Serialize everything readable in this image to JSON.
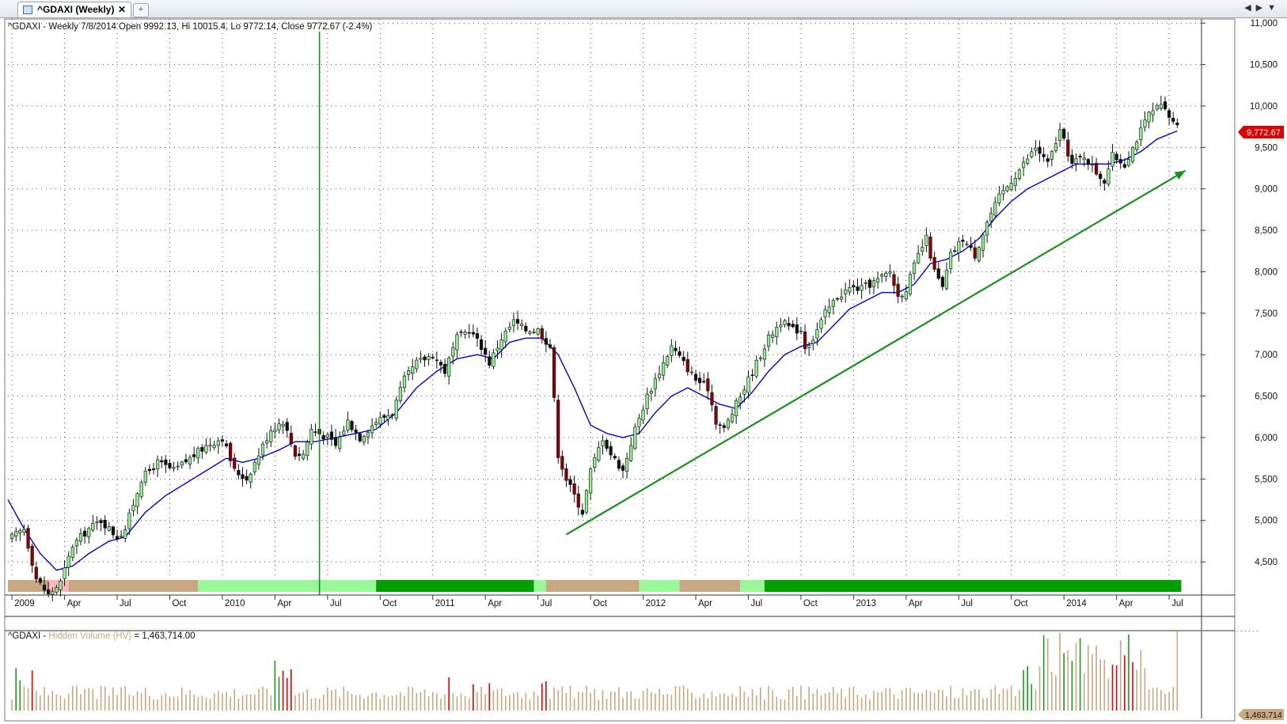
{
  "tab": {
    "title": "^GDAXI (Weekly)",
    "close": "✕",
    "new_tab": "+",
    "nav": "◀▶▼"
  },
  "price_header": "^GDAXI - Weekly 7/8/2014 Open 9992.13, Hi 10015.4, Lo 9772.14, Close 9772.67 (-2.4%)",
  "volume_header": {
    "symbol": "^GDAXI - ",
    "indicator": "Hidden Volume (HV)",
    "value": " = 1,463,714.00"
  },
  "last_price_label": "9,772.67",
  "last_volume_label": "1,463,714",
  "colors": {
    "up": "#90ee90",
    "up_dark": "#228b22",
    "down": "#8b0000",
    "ma": "#0000dd",
    "trendline": "#1a8f1a",
    "vline": "#1a8f1a",
    "vol_neutral": "#c8a882",
    "vol_red": "#dd0000",
    "vol_green": "#1a9a1a",
    "band_tan": "#c8a882",
    "band_light": "#98f898",
    "band_dark": "#00a000",
    "band_pink": "#ffb6c1"
  },
  "chart_data": {
    "type": "candlestick",
    "title": "",
    "x_axis": {
      "tick_labels": [
        {
          "label": "2009",
          "week": 0
        },
        {
          "label": "Apr",
          "week": 13
        },
        {
          "label": "Jul",
          "week": 26
        },
        {
          "label": "Oct",
          "week": 39
        },
        {
          "label": "2010",
          "week": 52
        },
        {
          "label": "Apr",
          "week": 65
        },
        {
          "label": "Jul",
          "week": 78
        },
        {
          "label": "Oct",
          "week": 91
        },
        {
          "label": "2011",
          "week": 104
        },
        {
          "label": "Apr",
          "week": 117
        },
        {
          "label": "Jul",
          "week": 130
        },
        {
          "label": "Oct",
          "week": 143
        },
        {
          "label": "2012",
          "week": 156
        },
        {
          "label": "Apr",
          "week": 169
        },
        {
          "label": "Jul",
          "week": 182
        },
        {
          "label": "Oct",
          "week": 195
        },
        {
          "label": "2013",
          "week": 208
        },
        {
          "label": "Apr",
          "week": 221
        },
        {
          "label": "Jul",
          "week": 234
        },
        {
          "label": "Oct",
          "week": 247
        },
        {
          "label": "2014",
          "week": 260
        },
        {
          "label": "Apr",
          "week": 273
        },
        {
          "label": "Jul",
          "week": 286
        }
      ],
      "week_range": [
        -1,
        294
      ]
    },
    "y_axis": {
      "ticks": [
        4500,
        5000,
        5500,
        6000,
        6500,
        7000,
        7500,
        8000,
        8500,
        9000,
        9500,
        10000,
        10500,
        11000
      ],
      "tick_labels": [
        "4,500",
        "5,000",
        "5,500",
        "6,000",
        "6,500",
        "7,000",
        "7,500",
        "8,000",
        "8,500",
        "9,000",
        "9,500",
        "10,000",
        "10,500",
        "11,000"
      ],
      "range": [
        4100,
        11050
      ]
    },
    "grid": true,
    "close_anchors": [
      [
        0,
        4800
      ],
      [
        3,
        4900
      ],
      [
        6,
        4300
      ],
      [
        9,
        4100
      ],
      [
        12,
        4250
      ],
      [
        15,
        4700
      ],
      [
        19,
        4900
      ],
      [
        22,
        5000
      ],
      [
        26,
        4800
      ],
      [
        28,
        4900
      ],
      [
        32,
        5500
      ],
      [
        36,
        5700
      ],
      [
        40,
        5600
      ],
      [
        44,
        5750
      ],
      [
        48,
        5900
      ],
      [
        52,
        6000
      ],
      [
        55,
        5600
      ],
      [
        58,
        5500
      ],
      [
        61,
        5800
      ],
      [
        64,
        6100
      ],
      [
        67,
        6200
      ],
      [
        70,
        5800
      ],
      [
        72,
        5800
      ],
      [
        74,
        6100
      ],
      [
        78,
        6000
      ],
      [
        80,
        5900
      ],
      [
        83,
        6200
      ],
      [
        86,
        6000
      ],
      [
        90,
        6200
      ],
      [
        94,
        6300
      ],
      [
        97,
        6700
      ],
      [
        100,
        6900
      ],
      [
        104,
        7000
      ],
      [
        107,
        6800
      ],
      [
        110,
        7200
      ],
      [
        113,
        7300
      ],
      [
        116,
        7100
      ],
      [
        118,
        6900
      ],
      [
        121,
        7200
      ],
      [
        124,
        7400
      ],
      [
        127,
        7300
      ],
      [
        130,
        7300
      ],
      [
        133,
        7100
      ],
      [
        135,
        5800
      ],
      [
        137,
        5500
      ],
      [
        139,
        5300
      ],
      [
        141,
        5100
      ],
      [
        143,
        5600
      ],
      [
        146,
        6000
      ],
      [
        148,
        5800
      ],
      [
        151,
        5600
      ],
      [
        154,
        6100
      ],
      [
        157,
        6500
      ],
      [
        160,
        6800
      ],
      [
        163,
        7100
      ],
      [
        166,
        6900
      ],
      [
        169,
        6700
      ],
      [
        172,
        6600
      ],
      [
        174,
        6200
      ],
      [
        176,
        6100
      ],
      [
        178,
        6300
      ],
      [
        181,
        6600
      ],
      [
        184,
        6900
      ],
      [
        187,
        7200
      ],
      [
        190,
        7400
      ],
      [
        193,
        7300
      ],
      [
        195,
        7300
      ],
      [
        196,
        7100
      ],
      [
        198,
        7200
      ],
      [
        201,
        7500
      ],
      [
        204,
        7700
      ],
      [
        207,
        7800
      ],
      [
        210,
        7800
      ],
      [
        214,
        7900
      ],
      [
        217,
        8000
      ],
      [
        219,
        7700
      ],
      [
        221,
        7800
      ],
      [
        224,
        8200
      ],
      [
        226,
        8400
      ],
      [
        228,
        8000
      ],
      [
        230,
        7800
      ],
      [
        232,
        8200
      ],
      [
        235,
        8400
      ],
      [
        238,
        8200
      ],
      [
        241,
        8600
      ],
      [
        244,
        8900
      ],
      [
        247,
        9100
      ],
      [
        250,
        9300
      ],
      [
        253,
        9500
      ],
      [
        256,
        9300
      ],
      [
        259,
        9700
      ],
      [
        262,
        9300
      ],
      [
        265,
        9400
      ],
      [
        268,
        9200
      ],
      [
        270,
        9100
      ],
      [
        272,
        9400
      ],
      [
        275,
        9300
      ],
      [
        278,
        9600
      ],
      [
        281,
        9900
      ],
      [
        284,
        10000
      ],
      [
        287,
        9800
      ],
      [
        288,
        9772.67
      ]
    ],
    "ma_anchors": [
      [
        -1,
        5250
      ],
      [
        3,
        4900
      ],
      [
        7,
        4600
      ],
      [
        11,
        4400
      ],
      [
        15,
        4450
      ],
      [
        19,
        4600
      ],
      [
        24,
        4750
      ],
      [
        28,
        4800
      ],
      [
        33,
        5100
      ],
      [
        38,
        5300
      ],
      [
        43,
        5450
      ],
      [
        48,
        5600
      ],
      [
        53,
        5750
      ],
      [
        57,
        5700
      ],
      [
        61,
        5750
      ],
      [
        66,
        5850
      ],
      [
        70,
        5950
      ],
      [
        75,
        5950
      ],
      [
        80,
        6000
      ],
      [
        85,
        6050
      ],
      [
        90,
        6100
      ],
      [
        95,
        6300
      ],
      [
        100,
        6600
      ],
      [
        105,
        6800
      ],
      [
        110,
        6950
      ],
      [
        115,
        7000
      ],
      [
        119,
        6950
      ],
      [
        123,
        7150
      ],
      [
        127,
        7200
      ],
      [
        131,
        7200
      ],
      [
        135,
        7000
      ],
      [
        139,
        6600
      ],
      [
        143,
        6150
      ],
      [
        147,
        6050
      ],
      [
        151,
        6000
      ],
      [
        155,
        6050
      ],
      [
        159,
        6300
      ],
      [
        163,
        6500
      ],
      [
        167,
        6600
      ],
      [
        171,
        6500
      ],
      [
        175,
        6400
      ],
      [
        179,
        6350
      ],
      [
        183,
        6550
      ],
      [
        187,
        6800
      ],
      [
        191,
        7000
      ],
      [
        195,
        7100
      ],
      [
        199,
        7150
      ],
      [
        203,
        7350
      ],
      [
        207,
        7550
      ],
      [
        211,
        7650
      ],
      [
        215,
        7750
      ],
      [
        219,
        7750
      ],
      [
        223,
        7850
      ],
      [
        227,
        8100
      ],
      [
        231,
        8150
      ],
      [
        235,
        8250
      ],
      [
        239,
        8400
      ],
      [
        243,
        8650
      ],
      [
        247,
        8850
      ],
      [
        251,
        9000
      ],
      [
        255,
        9100
      ],
      [
        259,
        9200
      ],
      [
        263,
        9300
      ],
      [
        267,
        9300
      ],
      [
        271,
        9300
      ],
      [
        275,
        9350
      ],
      [
        279,
        9450
      ],
      [
        283,
        9600
      ],
      [
        288,
        9700
      ]
    ],
    "trendline": {
      "from": [
        137,
        4830
      ],
      "to": [
        290,
        9220
      ]
    },
    "vertical_marker_week": 76,
    "volume": {
      "range": [
        0,
        1500000
      ],
      "last_value": 1463714.0,
      "red_weeks": [
        5,
        67,
        68,
        69,
        108,
        114,
        118,
        131,
        132,
        272,
        273,
        275,
        277
      ],
      "green_weeks": [
        1,
        2,
        65,
        66,
        250,
        251,
        252,
        255,
        260,
        262,
        264,
        276
      ],
      "spike_start_week": 254,
      "spike_end_week": 280
    },
    "regime_bands": [
      {
        "from": -1,
        "to": 9,
        "color": "band_tan"
      },
      {
        "from": 9,
        "to": 14,
        "color": "band_pink"
      },
      {
        "from": 14,
        "to": 46,
        "color": "band_tan"
      },
      {
        "from": 46,
        "to": 90,
        "color": "band_light"
      },
      {
        "from": 90,
        "to": 129,
        "color": "band_dark"
      },
      {
        "from": 129,
        "to": 132,
        "color": "band_light"
      },
      {
        "from": 132,
        "to": 134,
        "color": "band_tan"
      },
      {
        "from": 134,
        "to": 155,
        "color": "band_tan"
      },
      {
        "from": 155,
        "to": 165,
        "color": "band_light"
      },
      {
        "from": 165,
        "to": 180,
        "color": "band_tan"
      },
      {
        "from": 180,
        "to": 186,
        "color": "band_light"
      },
      {
        "from": 186,
        "to": 289,
        "color": "band_dark"
      }
    ]
  }
}
